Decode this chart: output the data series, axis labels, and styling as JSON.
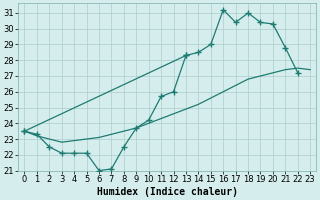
{
  "xlabel": "Humidex (Indice chaleur)",
  "background_color": "#d5eeed",
  "grid_color": "#aecccc",
  "line_color": "#1e7b72",
  "xlim": [
    -0.5,
    23.5
  ],
  "ylim": [
    21,
    31.6
  ],
  "yticks": [
    21,
    22,
    23,
    24,
    25,
    26,
    27,
    28,
    29,
    30,
    31
  ],
  "xticks": [
    0,
    1,
    2,
    3,
    4,
    5,
    6,
    7,
    8,
    9,
    10,
    11,
    12,
    13,
    14,
    15,
    16,
    17,
    18,
    19,
    20,
    21,
    22,
    23
  ],
  "line1_x": [
    0,
    1,
    2,
    3,
    4,
    5,
    6,
    7,
    8,
    9,
    10,
    11,
    12,
    13
  ],
  "line1_y": [
    23.5,
    23.3,
    22.5,
    22.1,
    22.1,
    22.1,
    21.0,
    21.1,
    22.5,
    23.7,
    24.2,
    25.7,
    26.0,
    28.3
  ],
  "line2_x": [
    0,
    13,
    14,
    15,
    16,
    17,
    18,
    19,
    20,
    21,
    22
  ],
  "line2_y": [
    23.5,
    28.3,
    28.5,
    29.0,
    31.2,
    30.4,
    31.0,
    30.4,
    30.3,
    28.8,
    27.2
  ],
  "line3_x": [
    0,
    1,
    2,
    3,
    4,
    5,
    6,
    7,
    8,
    9,
    10,
    11,
    12,
    13,
    14,
    15,
    16,
    17,
    18,
    19,
    20,
    21,
    22,
    23
  ],
  "line3_y": [
    23.5,
    23.2,
    23.0,
    22.8,
    22.9,
    23.0,
    23.1,
    23.3,
    23.5,
    23.7,
    24.0,
    24.3,
    24.6,
    24.9,
    25.2,
    25.6,
    26.0,
    26.4,
    26.8,
    27.0,
    27.2,
    27.4,
    27.5,
    27.4
  ],
  "marker_size": 2.5,
  "line_width": 0.9,
  "tick_fontsize": 6.0,
  "xlabel_fontsize": 7.0
}
